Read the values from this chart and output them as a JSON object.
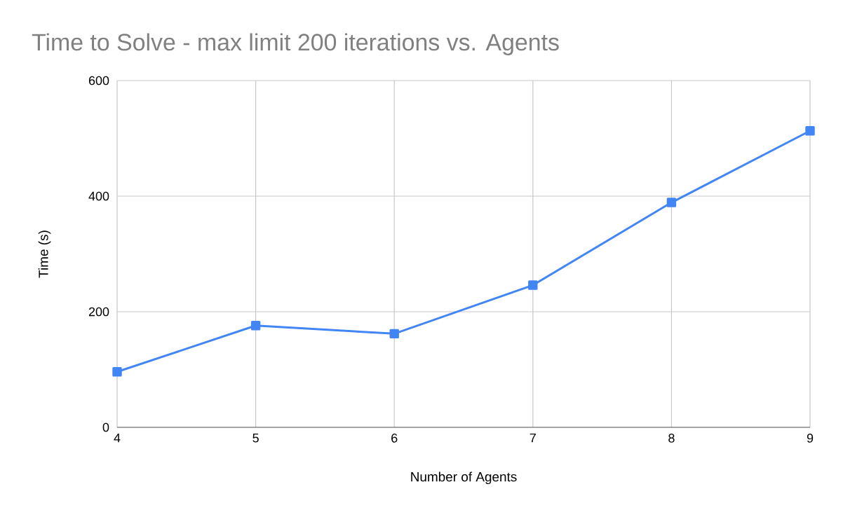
{
  "chart_data": {
    "type": "line",
    "title": "Time to Solve - max limit 200 iterations vs. Agents",
    "xlabel": "Number of Agents",
    "ylabel": "Time (s)",
    "x": [
      4,
      5,
      6,
      7,
      8,
      9
    ],
    "series": [
      {
        "color": "#4285f4",
        "values": [
          96,
          176,
          162,
          246,
          389,
          513
        ]
      }
    ],
    "xlim": [
      4,
      9
    ],
    "xticks": [
      4,
      5,
      6,
      7,
      8,
      9
    ],
    "ylim": [
      0,
      600
    ],
    "yticks": [
      0,
      200,
      400,
      600
    ],
    "grid": true,
    "marker": "square",
    "line_style": "solid"
  }
}
